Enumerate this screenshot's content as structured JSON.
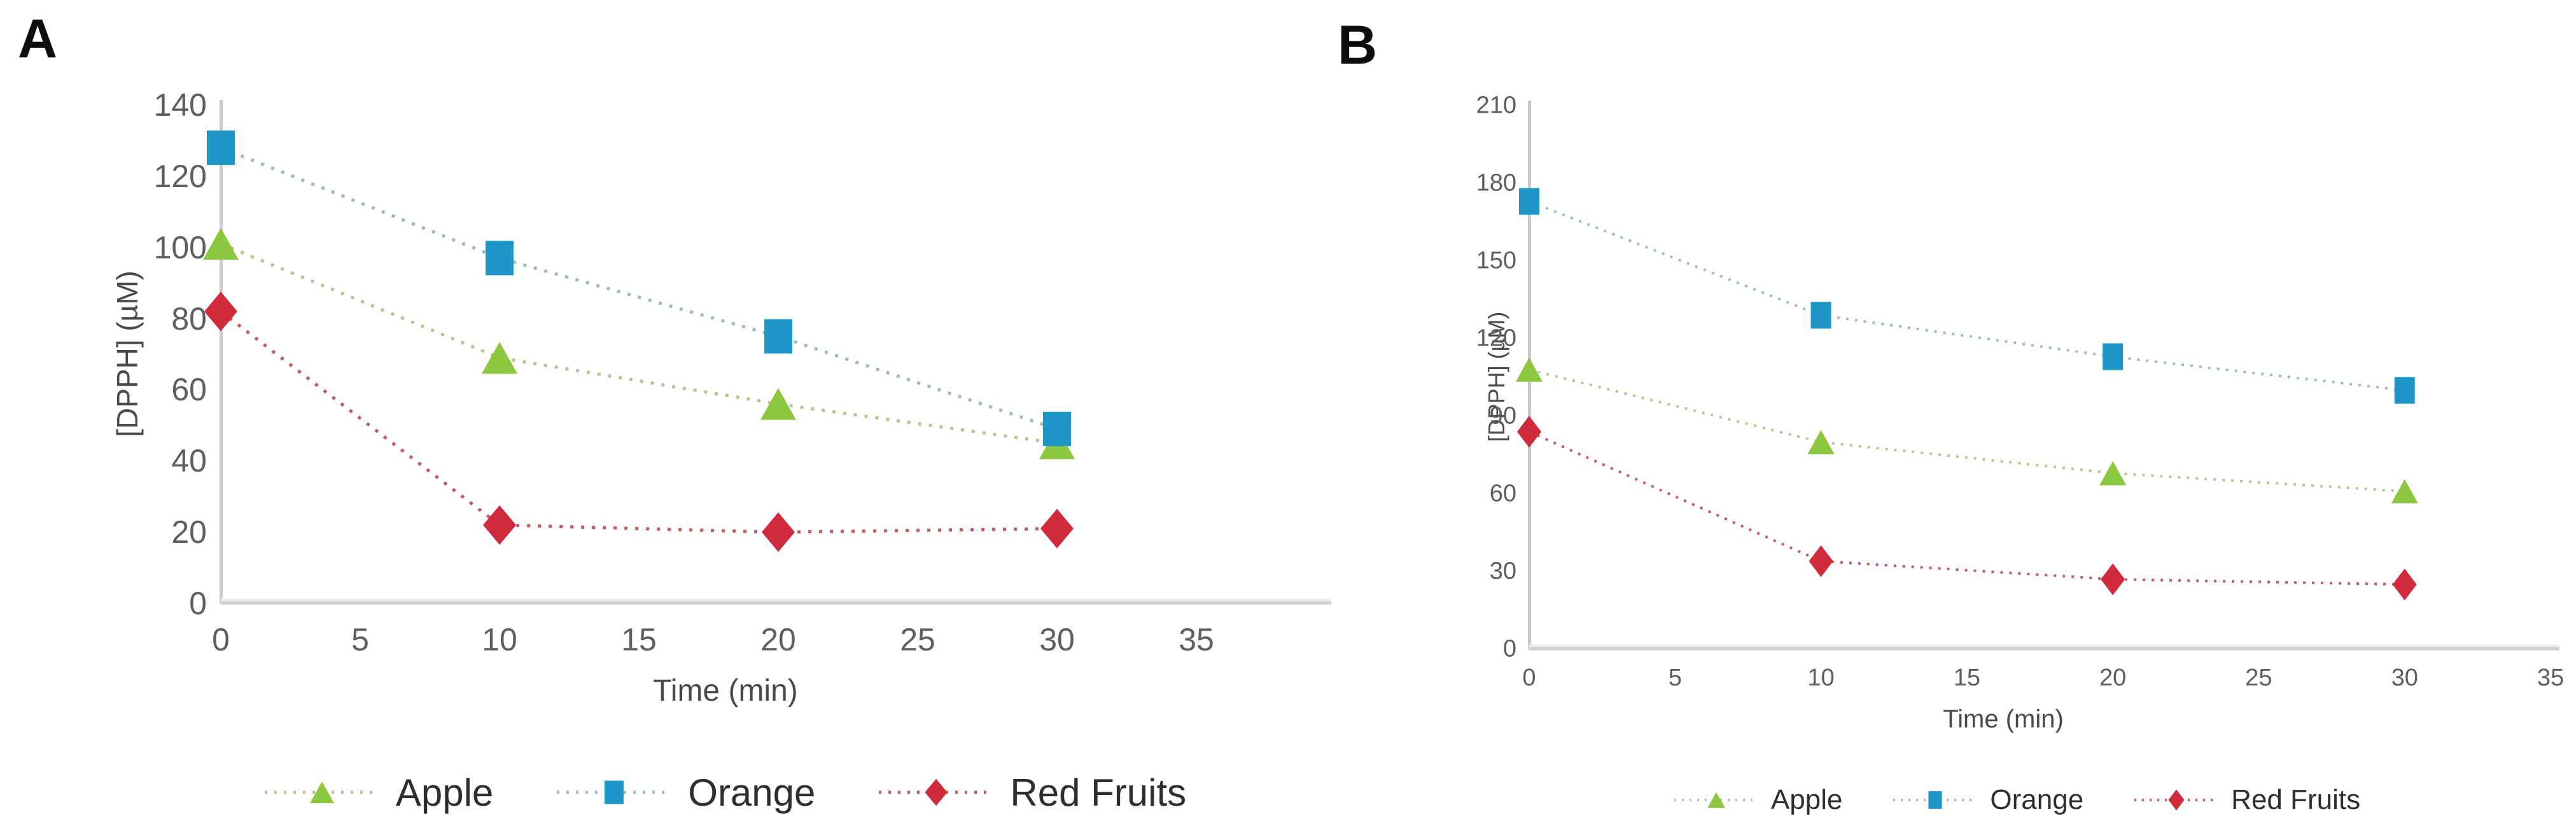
{
  "chart_data": [
    {
      "type": "line",
      "panel_label": "A",
      "xlabel": "Time (min)",
      "ylabel": "[DPPH] (µM)",
      "xlim": [
        0,
        35
      ],
      "ylim": [
        0,
        140
      ],
      "x_ticks": [
        0,
        5,
        10,
        15,
        20,
        25,
        30,
        35
      ],
      "y_ticks": [
        0,
        20,
        40,
        60,
        80,
        100,
        120,
        140
      ],
      "x": [
        0,
        10,
        20,
        30
      ],
      "grid": false,
      "legend_position": "bottom",
      "line_style": "dotted",
      "series": [
        {
          "name": "Apple",
          "marker": "triangle",
          "marker_color": "#8dc63f",
          "line_color": "#b9c394",
          "values": [
            101,
            69,
            56,
            45
          ]
        },
        {
          "name": "Orange",
          "marker": "square",
          "marker_color": "#1e97c8",
          "line_color": "#9fb9c3",
          "values": [
            128,
            97,
            75,
            49
          ]
        },
        {
          "name": "Red Fruits",
          "marker": "diamond",
          "marker_color": "#cf2b3c",
          "line_color": "#c05b65",
          "values": [
            82,
            22,
            20,
            21
          ]
        }
      ]
    },
    {
      "type": "line",
      "panel_label": "B",
      "xlabel": "Time (min)",
      "ylabel": "[DPPH] (µM)",
      "xlim": [
        0,
        35
      ],
      "ylim": [
        0,
        210
      ],
      "x_ticks": [
        0,
        5,
        10,
        15,
        20,
        25,
        30,
        35
      ],
      "y_ticks": [
        0,
        30,
        60,
        90,
        120,
        150,
        180,
        210
      ],
      "x": [
        0,
        10,
        20,
        30
      ],
      "grid": false,
      "legend_position": "bottom",
      "line_style": "dotted",
      "series": [
        {
          "name": "Apple",
          "marker": "triangle",
          "marker_color": "#8dc63f",
          "line_color": "#b9c394",
          "values": [
            108,
            80,
            68,
            61
          ]
        },
        {
          "name": "Orange",
          "marker": "square",
          "marker_color": "#1e97c8",
          "line_color": "#9fb9c3",
          "values": [
            173,
            129,
            113,
            100
          ]
        },
        {
          "name": "Red Fruits",
          "marker": "diamond",
          "marker_color": "#cf2b3c",
          "line_color": "#c05b65",
          "values": [
            84,
            34,
            27,
            25
          ]
        }
      ]
    }
  ]
}
